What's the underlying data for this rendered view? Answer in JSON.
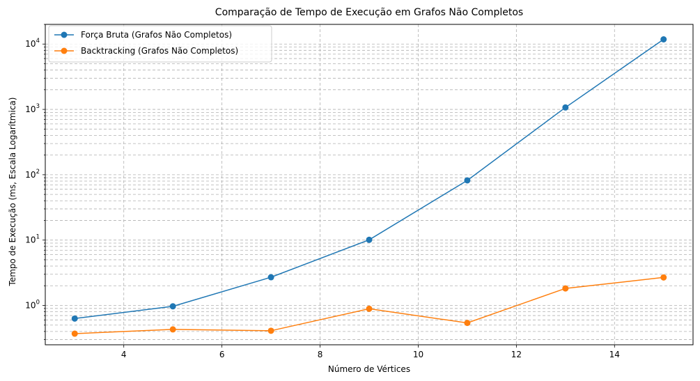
{
  "chart_data": {
    "type": "line",
    "title": "Comparação de Tempo de Execução em Grafos Não Completos",
    "xlabel": "Número de Vértices",
    "ylabel": "Tempo de Execução (ms, Escala Logarítmica)",
    "yscale": "log",
    "xlim": [
      2.4,
      15.6
    ],
    "ylim": [
      0.25,
      20000
    ],
    "x_ticks": [
      4,
      6,
      8,
      10,
      12,
      14
    ],
    "y_ticks": [
      {
        "value": 1,
        "base": "10",
        "exp": "0"
      },
      {
        "value": 10,
        "base": "10",
        "exp": "1"
      },
      {
        "value": 100,
        "base": "10",
        "exp": "2"
      },
      {
        "value": 1000,
        "base": "10",
        "exp": "3"
      },
      {
        "value": 10000,
        "base": "10",
        "exp": "4"
      }
    ],
    "grid": true,
    "legend_position": "top-left",
    "x": [
      3,
      5,
      7,
      9,
      11,
      13,
      15
    ],
    "series": [
      {
        "name": "Força Bruta (Grafos Não Completos)",
        "color": "#1f77b4",
        "values": [
          0.63,
          0.97,
          2.7,
          10.1,
          82,
          1070,
          11800
        ]
      },
      {
        "name": "Backtracking (Grafos Não Completos)",
        "color": "#ff7f0e",
        "values": [
          0.37,
          0.43,
          0.41,
          0.89,
          0.54,
          1.82,
          2.68
        ]
      }
    ]
  }
}
